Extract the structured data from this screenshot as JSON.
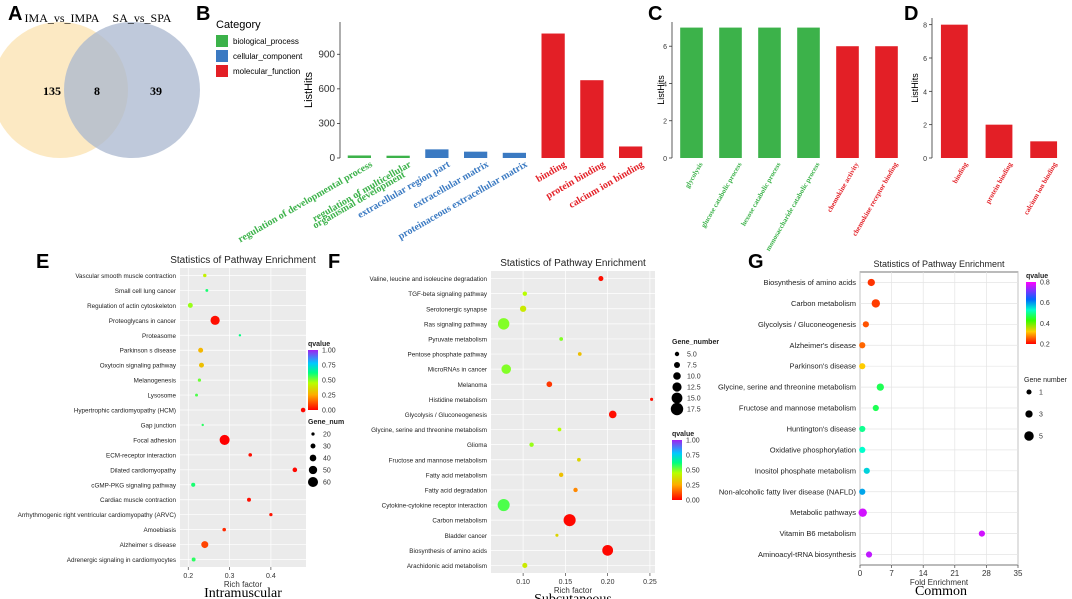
{
  "chart_data": [
    {
      "panel": "A",
      "type": "venn",
      "sets": [
        {
          "name": "IMA_vs_IMPA",
          "color": "#fbe3b4"
        },
        {
          "name": "SA_vs_SPA",
          "color": "#a9b7cf"
        }
      ],
      "values": {
        "only_left": 135,
        "both": 8,
        "only_right": 39
      }
    },
    {
      "panel": "B",
      "type": "bar",
      "ylabel": "ListHits",
      "ylim": [
        0,
        1180
      ],
      "yticks": [
        0,
        300,
        600,
        900
      ],
      "legend_title": "Category",
      "legend": [
        {
          "label": "biological_process",
          "color": "#3cb24a"
        },
        {
          "label": "cellular_component",
          "color": "#3b7ac2"
        },
        {
          "label": "molecular_function",
          "color": "#e31f26"
        }
      ],
      "categories": [
        "regulation of developmental process",
        "regulation of multicellular organismal development",
        "extracellular region part",
        "extracellular matrix",
        "proteinaceous extracellular matrix",
        "binding",
        "protein binding",
        "calcium ion binding"
      ],
      "category_lines": [
        [
          "regulation of developmental process"
        ],
        [
          "regulation of multicellular",
          "organismal development"
        ],
        [
          "extracellular region part"
        ],
        [
          "extracellular matrix"
        ],
        [
          "proteinaceous extracellular matrix"
        ],
        [
          "binding"
        ],
        [
          "protein binding"
        ],
        [
          "calcium ion binding"
        ]
      ],
      "groups": [
        "biological_process",
        "biological_process",
        "cellular_component",
        "cellular_component",
        "cellular_component",
        "molecular_function",
        "molecular_function",
        "molecular_function"
      ],
      "values": [
        22,
        20,
        75,
        55,
        45,
        1080,
        675,
        100
      ]
    },
    {
      "panel": "C",
      "type": "bar",
      "ylabel": "ListHits",
      "ylim": [
        0,
        7.3
      ],
      "yticks": [
        0,
        2,
        4,
        6
      ],
      "categories": [
        "glycolysis",
        "glucose catabolic process",
        "hexose catabolic process",
        "monosaccharide catabolic process",
        "chemokine activity",
        "chemokine receptor binding"
      ],
      "groups": [
        "biological_process",
        "biological_process",
        "biological_process",
        "biological_process",
        "molecular_function",
        "molecular_function"
      ],
      "values": [
        7,
        7,
        7,
        7,
        6,
        6
      ]
    },
    {
      "panel": "D",
      "type": "bar",
      "ylabel": "ListHits",
      "ylim": [
        0,
        8.4
      ],
      "yticks": [
        0,
        2,
        4,
        6,
        8
      ],
      "categories": [
        "binding",
        "protein binding",
        "calcium ion binding"
      ],
      "groups": [
        "molecular_function",
        "molecular_function",
        "molecular_function"
      ],
      "values": [
        8,
        2,
        1
      ]
    },
    {
      "panel": "E",
      "type": "scatter",
      "title": "Statistics of Pathway Enrichment",
      "xlabel": "Rich factor",
      "caption": "Intramuscular",
      "xlim": [
        0.18,
        0.485
      ],
      "xticks": [
        "0.2",
        "0.3",
        "0.4"
      ],
      "legend": {
        "color_title": "qvalue",
        "color_ticks": [
          "1.00",
          "0.75",
          "0.50",
          "0.25",
          "0.00"
        ],
        "size_title": "Gene_num",
        "size_ticks": [
          "20",
          "30",
          "40",
          "50",
          "60"
        ]
      },
      "pathways": [
        "Vascular smooth muscle contraction",
        "Small cell lung cancer",
        "Regulation of actin cytoskeleton",
        "Proteoglycans in cancer",
        "Proteasome",
        "Parkinson s disease",
        "Oxytocin signaling pathway",
        "Melanogenesis",
        "Lysosome",
        "Hypertrophic cardiomyopathy (HCM)",
        "Gap junction",
        "Focal adhesion",
        "ECM-receptor interaction",
        "Dilated cardiomyopathy",
        "cGMP-PKG signaling pathway",
        "Cardiac muscle contraction",
        "Arrhythmogenic right ventricular cardiomyopathy (ARVC)",
        "Amoebiasis",
        "Alzheimer s disease",
        "Adrenergic signaling in cardiomyocytes"
      ],
      "x": [
        0.24,
        0.245,
        0.205,
        0.265,
        0.325,
        0.23,
        0.232,
        0.227,
        0.22,
        0.478,
        0.235,
        0.288,
        0.35,
        0.458,
        0.212,
        0.347,
        0.4,
        0.287,
        0.24,
        0.213
      ],
      "gene_number": [
        21,
        18,
        30,
        55,
        15,
        30,
        30,
        20,
        18,
        28,
        15,
        60,
        22,
        28,
        25,
        24,
        20,
        22,
        42,
        24
      ],
      "qvalue": [
        0.42,
        0.6,
        0.48,
        0.02,
        0.62,
        0.28,
        0.3,
        0.52,
        0.55,
        0.01,
        0.58,
        0.0,
        0.02,
        0.01,
        0.6,
        0.02,
        0.03,
        0.06,
        0.1,
        0.58
      ]
    },
    {
      "panel": "F",
      "type": "scatter",
      "title": "Statistics of Pathway Enrichment",
      "xlabel": "Rich factor",
      "caption": "Subcutaneous",
      "xlim": [
        0.062,
        0.256
      ],
      "xticks": [
        "0.10",
        "0.15",
        "0.20",
        "0.25"
      ],
      "legend": {
        "size_title": "Gene_number",
        "size_ticks": [
          "5.0",
          "7.5",
          "10.0",
          "12.5",
          "15.0",
          "17.5"
        ],
        "color_title": "qvalue",
        "color_ticks": [
          "1.00",
          "0.75",
          "0.50",
          "0.25",
          "0.00"
        ]
      },
      "pathways": [
        "Valine, leucine and isoleucine degradation",
        "TGF-beta signaling pathway",
        "Serotonergic synapse",
        "Ras signaling pathway",
        "Pyruvate metabolism",
        "Pentose phosphate pathway",
        "MicroRNAs in cancer",
        "Melanoma",
        "Histidine metabolism",
        "Glycolysis / Gluconeogenesis",
        "Glycine, serine and threonine metabolism",
        "Glioma",
        "Fructose and mannose metabolism",
        "Fatty acid metabolism",
        "Fatty acid degradation",
        "Cytokine-cytokine receptor interaction",
        "Carbon metabolism",
        "Bladder cancer",
        "Biosynthesis of amino acids",
        "Arachidonic acid metabolism"
      ],
      "x": [
        0.192,
        0.102,
        0.1,
        0.077,
        0.145,
        0.167,
        0.08,
        0.131,
        0.252,
        0.206,
        0.143,
        0.11,
        0.166,
        0.145,
        0.162,
        0.077,
        0.155,
        0.14,
        0.2,
        0.102
      ],
      "gene_number": [
        6,
        5,
        8,
        16,
        4,
        4,
        13,
        7,
        3,
        10,
        4,
        5,
        4,
        5,
        5,
        17,
        17,
        3,
        15,
        6
      ],
      "qvalue": [
        0.02,
        0.45,
        0.4,
        0.5,
        0.5,
        0.3,
        0.5,
        0.08,
        0.02,
        0.02,
        0.45,
        0.48,
        0.35,
        0.3,
        0.2,
        0.55,
        0.01,
        0.35,
        0.01,
        0.4
      ]
    },
    {
      "panel": "G",
      "type": "scatter",
      "title": "Statistics of Pathway Enrichment",
      "xlabel": "Fold Enrichment",
      "caption": "Common",
      "xlim": [
        0,
        35
      ],
      "xticks": [
        "0",
        "7",
        "14",
        "21",
        "28",
        "35"
      ],
      "legend": {
        "color_title": "qvalue",
        "color_ticks": [
          "0.8",
          "0.6",
          "0.4",
          "0.2"
        ],
        "size_title": "Gene number",
        "size_ticks": [
          "1",
          "3",
          "5"
        ]
      },
      "pathways": [
        "Biosynthesis of amino acids",
        "Carbon metabolism",
        "Glycolysis / Gluconeogenesis",
        "Alzheimer's disease",
        "Parkinson's disease",
        "Glycine, serine and threonine metabolism",
        "Fructose and mannose metabolism",
        "Huntington's disease",
        "Oxidative phosphorylation",
        "Inositol phosphate metabolism",
        "Non-alcoholic fatty liver disease (NAFLD)",
        "Metabolic pathways",
        "Vitamin B6 metabolism",
        "Aminoacyl-tRNA biosynthesis"
      ],
      "x": [
        2.5,
        3.5,
        1.3,
        0.5,
        0.5,
        4.5,
        3.5,
        0.5,
        0.5,
        1.5,
        0.5,
        0.6,
        27,
        2.0
      ],
      "gene_number": [
        3,
        4,
        2,
        2,
        2,
        3,
        2,
        2,
        2,
        2,
        2,
        4,
        2,
        2
      ],
      "qvalue": [
        0.05,
        0.06,
        0.08,
        0.1,
        0.2,
        0.45,
        0.45,
        0.5,
        0.55,
        0.6,
        0.65,
        0.95,
        0.95,
        0.93
      ]
    }
  ],
  "labels": {
    "panel_a": "A",
    "panel_b": "B",
    "panel_c": "C",
    "panel_d": "D",
    "panel_e": "E",
    "panel_f": "F",
    "panel_g": "G"
  },
  "colors": {
    "biological_process": "#3cb24a",
    "cellular_component": "#3b7ac2",
    "molecular_function": "#e31f26",
    "panel_g_background": "#ffffff",
    "panel_ef_background": "#ebebeb"
  }
}
